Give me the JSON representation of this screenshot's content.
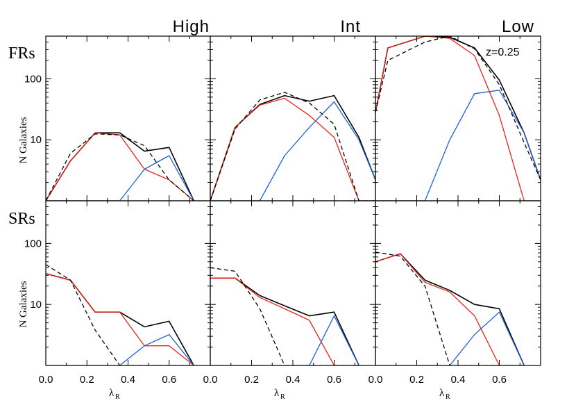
{
  "figure": {
    "column_labels": [
      "High",
      "Int",
      "Low"
    ],
    "row_labels": [
      "FRs",
      "SRs"
    ],
    "ylabel": "N Galaxies",
    "xlabel_main": "λ",
    "xlabel_sub": "R",
    "annotation": "z=0.25"
  },
  "colors": {
    "total": "#000000",
    "fast": "#e8231a",
    "slow": "#1f5fd6",
    "comparison": "#000000"
  },
  "chart_data": [
    {
      "type": "line",
      "row": "FRs",
      "column": "High",
      "x": [
        0.0,
        0.12,
        0.24,
        0.36,
        0.48,
        0.6,
        0.72
      ],
      "xlim": [
        0.0,
        0.8
      ],
      "ylim": [
        1,
        500
      ],
      "yscale": "log",
      "xticks": [
        "0.0",
        "0.2",
        "0.4",
        "0.6"
      ],
      "yticks": [
        "10",
        "100"
      ],
      "series": [
        {
          "style": "solid",
          "color": "total",
          "values": [
            1,
            4.5,
            13,
            13,
            6.5,
            7.5,
            1
          ]
        },
        {
          "style": "solid",
          "color": "fast",
          "values": [
            1,
            4.5,
            13,
            12,
            3.3,
            2.2,
            1
          ]
        },
        {
          "style": "solid",
          "color": "slow",
          "values": [
            1,
            1,
            1,
            1,
            3.3,
            5.5,
            1
          ]
        },
        {
          "style": "dashed",
          "color": "comparison",
          "values": [
            1,
            6,
            12.5,
            12,
            8,
            2.2,
            1
          ]
        }
      ]
    },
    {
      "type": "line",
      "row": "FRs",
      "column": "Int",
      "x": [
        0.0,
        0.12,
        0.24,
        0.36,
        0.48,
        0.6,
        0.72,
        0.8
      ],
      "xlim": [
        0.0,
        0.8
      ],
      "ylim": [
        1,
        500
      ],
      "yscale": "log",
      "xticks": [
        "0.0",
        "0.2",
        "0.4",
        "0.6"
      ],
      "yticks": [
        "10",
        "100"
      ],
      "series": [
        {
          "style": "solid",
          "color": "total",
          "values": [
            1,
            16,
            38,
            53,
            43,
            53,
            11,
            2.2
          ]
        },
        {
          "style": "solid",
          "color": "fast",
          "values": [
            1,
            16,
            37,
            48,
            25,
            11,
            1,
            1
          ]
        },
        {
          "style": "solid",
          "color": "slow",
          "values": [
            1,
            1,
            1,
            5.5,
            16,
            42,
            10,
            2.2
          ]
        },
        {
          "style": "dashed",
          "color": "comparison",
          "values": [
            1,
            15,
            45,
            60,
            40,
            18,
            1,
            1
          ]
        }
      ]
    },
    {
      "type": "line",
      "row": "FRs",
      "column": "Low",
      "x": [
        0.0,
        0.06,
        0.24,
        0.36,
        0.48,
        0.6,
        0.72,
        0.8
      ],
      "xlim": [
        0.0,
        0.8
      ],
      "ylim": [
        1,
        500
      ],
      "yscale": "log",
      "xticks": [
        "0.0",
        "0.2",
        "0.4",
        "0.6"
      ],
      "yticks": [
        "10",
        "100"
      ],
      "series": [
        {
          "style": "solid",
          "color": "total",
          "values": [
            28,
            320,
            500,
            480,
            320,
            95,
            13,
            2.2
          ]
        },
        {
          "style": "solid",
          "color": "fast",
          "values": [
            28,
            320,
            500,
            460,
            240,
            25,
            1,
            1
          ]
        },
        {
          "style": "solid",
          "color": "slow",
          "values": [
            1,
            1,
            1,
            10,
            57,
            65,
            13,
            2.2
          ]
        },
        {
          "style": "dashed",
          "color": "comparison",
          "values": [
            28,
            200,
            400,
            500,
            310,
            80,
            9,
            2.2
          ]
        }
      ]
    },
    {
      "type": "line",
      "row": "SRs",
      "column": "High",
      "x": [
        0.0,
        0.12,
        0.24,
        0.36,
        0.48,
        0.6,
        0.72
      ],
      "xlim": [
        0.0,
        0.8
      ],
      "ylim": [
        1,
        500
      ],
      "yscale": "log",
      "xticks": [
        "0.0",
        "0.2",
        "0.4",
        "0.6"
      ],
      "yticks": [
        "10",
        "100"
      ],
      "series": [
        {
          "style": "solid",
          "color": "total",
          "values": [
            32,
            25,
            7.5,
            7.5,
            4.3,
            5.3,
            1
          ]
        },
        {
          "style": "solid",
          "color": "fast",
          "values": [
            32,
            25,
            7.5,
            7.5,
            2.1,
            2.1,
            1
          ]
        },
        {
          "style": "solid",
          "color": "slow",
          "values": [
            1,
            1,
            1,
            1,
            2.1,
            3.2,
            1
          ]
        },
        {
          "style": "dashed",
          "color": "comparison",
          "values": [
            45,
            25,
            3.8,
            1,
            1,
            1,
            1
          ]
        }
      ]
    },
    {
      "type": "line",
      "row": "SRs",
      "column": "Int",
      "x": [
        0.0,
        0.12,
        0.24,
        0.36,
        0.48,
        0.6,
        0.72
      ],
      "xlim": [
        0.0,
        0.8
      ],
      "ylim": [
        1,
        500
      ],
      "yscale": "log",
      "xticks": [
        "0.0",
        "0.2",
        "0.4",
        "0.6"
      ],
      "yticks": [
        "10",
        "100"
      ],
      "series": [
        {
          "style": "solid",
          "color": "total",
          "values": [
            27,
            27,
            14,
            9.5,
            6.5,
            7.5,
            1
          ]
        },
        {
          "style": "solid",
          "color": "fast",
          "values": [
            27,
            27,
            13,
            8.5,
            5.5,
            1,
            1
          ]
        },
        {
          "style": "solid",
          "color": "slow",
          "values": [
            1,
            1,
            1,
            1,
            1,
            6.5,
            1
          ]
        },
        {
          "style": "dashed",
          "color": "comparison",
          "values": [
            40,
            35,
            8.5,
            1,
            1,
            1,
            1
          ]
        }
      ]
    },
    {
      "type": "line",
      "row": "SRs",
      "column": "Low",
      "x": [
        0.0,
        0.12,
        0.24,
        0.36,
        0.48,
        0.6,
        0.72
      ],
      "xlim": [
        0.0,
        0.8
      ],
      "ylim": [
        1,
        500
      ],
      "yscale": "log",
      "xticks": [
        "0.0",
        "0.2",
        "0.4",
        "0.6"
      ],
      "yticks": [
        "10",
        "100"
      ],
      "series": [
        {
          "style": "solid",
          "color": "total",
          "values": [
            50,
            68,
            25,
            17,
            10,
            8.5,
            1
          ]
        },
        {
          "style": "solid",
          "color": "fast",
          "values": [
            50,
            68,
            23,
            16,
            6.5,
            1,
            1
          ]
        },
        {
          "style": "solid",
          "color": "slow",
          "values": [
            1,
            1,
            1,
            1,
            3.2,
            7.5,
            1
          ]
        },
        {
          "style": "dashed",
          "color": "comparison",
          "values": [
            72,
            62,
            20,
            1,
            1,
            1,
            1
          ]
        }
      ]
    }
  ]
}
